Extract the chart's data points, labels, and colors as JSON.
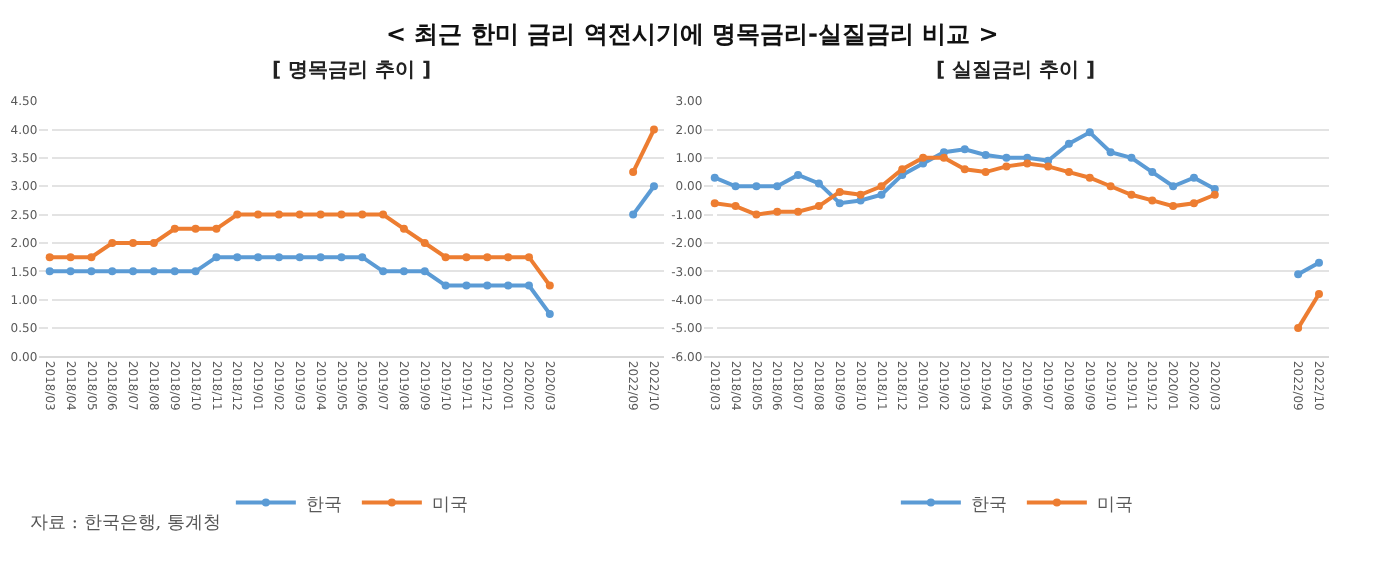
{
  "chart_data": [
    {
      "type": "line",
      "title": "[ 명목금리 추이 ]",
      "annotations": [
        "< 최근 한미 금리 역전시기에 명목금리-실질금리 비교 >",
        "자료 : 한국은행, 통계청"
      ],
      "categories": [
        "2018/03",
        "2018/04",
        "2018/05",
        "2018/06",
        "2018/07",
        "2018/08",
        "2018/09",
        "2018/10",
        "2018/11",
        "2018/12",
        "2019/01",
        "2019/02",
        "2019/03",
        "2019/04",
        "2019/05",
        "2019/06",
        "2019/07",
        "2019/08",
        "2019/09",
        "2019/10",
        "2019/11",
        "2019/12",
        "2020/01",
        "2020/02",
        "2020/03",
        null,
        null,
        null,
        "2022/09",
        "2022/10"
      ],
      "series": [
        {
          "name": "한국",
          "color": "#5b9bd5",
          "values": [
            1.5,
            1.5,
            1.5,
            1.5,
            1.5,
            1.5,
            1.5,
            1.5,
            1.75,
            1.75,
            1.75,
            1.75,
            1.75,
            1.75,
            1.75,
            1.75,
            1.5,
            1.5,
            1.5,
            1.25,
            1.25,
            1.25,
            1.25,
            1.25,
            0.75,
            null,
            null,
            null,
            2.5,
            3.0
          ]
        },
        {
          "name": "미국",
          "color": "#ed7d31",
          "values": [
            1.75,
            1.75,
            1.75,
            2.0,
            2.0,
            2.0,
            2.25,
            2.25,
            2.25,
            2.5,
            2.5,
            2.5,
            2.5,
            2.5,
            2.5,
            2.5,
            2.5,
            2.25,
            2.0,
            1.75,
            1.75,
            1.75,
            1.75,
            1.75,
            1.25,
            null,
            null,
            null,
            3.25,
            4.0
          ]
        }
      ],
      "ylim": [
        0,
        4.5
      ],
      "yticks": [
        {
          "value": 0,
          "label": "0.00"
        },
        {
          "value": 0.5,
          "label": "0.50"
        },
        {
          "value": 1,
          "label": "1.00"
        },
        {
          "value": 1.5,
          "label": "1.50"
        },
        {
          "value": 2,
          "label": "2.00"
        },
        {
          "value": 2.5,
          "label": "2.50"
        },
        {
          "value": 3,
          "label": "3.00"
        },
        {
          "value": 3.5,
          "label": "3.50"
        },
        {
          "value": 4,
          "label": "4.00"
        },
        {
          "value": 4.5,
          "label": "4.50"
        }
      ],
      "grid": "y",
      "legend": "bottom",
      "marker": "circle",
      "line_style": "solid"
    },
    {
      "type": "line",
      "title": "[ 실질금리 추이 ]",
      "categories": [
        "2018/03",
        "2018/04",
        "2018/05",
        "2018/06",
        "2018/07",
        "2018/08",
        "2018/09",
        "2018/10",
        "2018/11",
        "2018/12",
        "2019/01",
        "2019/02",
        "2019/03",
        "2019/04",
        "2019/05",
        "2019/06",
        "2019/07",
        "2019/08",
        "2019/09",
        "2019/10",
        "2019/11",
        "2019/12",
        "2020/01",
        "2020/02",
        "2020/03",
        null,
        null,
        null,
        "2022/09",
        "2022/10"
      ],
      "series": [
        {
          "name": "한국",
          "color": "#5b9bd5",
          "values": [
            0.3,
            0.0,
            0.0,
            0.0,
            0.4,
            0.1,
            -0.6,
            -0.5,
            -0.3,
            0.4,
            0.8,
            1.2,
            1.3,
            1.1,
            1.0,
            1.0,
            0.9,
            1.5,
            1.9,
            1.2,
            1.0,
            0.5,
            0.0,
            0.3,
            -0.1,
            null,
            null,
            null,
            -3.1,
            -2.7
          ]
        },
        {
          "name": "미국",
          "color": "#ed7d31",
          "values": [
            -0.6,
            -0.7,
            -1.0,
            -0.9,
            -0.9,
            -0.7,
            -0.2,
            -0.3,
            0.0,
            0.6,
            1.0,
            1.0,
            0.6,
            0.5,
            0.7,
            0.8,
            0.7,
            0.5,
            0.3,
            0.0,
            -0.3,
            -0.5,
            -0.7,
            -0.6,
            -0.3,
            null,
            null,
            null,
            -5.0,
            -3.8
          ]
        }
      ],
      "ylim": [
        -6,
        3
      ],
      "yticks": [
        {
          "value": -6,
          "label": "-6.00"
        },
        {
          "value": -5,
          "label": "-5.00"
        },
        {
          "value": -4,
          "label": "-4.00"
        },
        {
          "value": -3,
          "label": "-3.00"
        },
        {
          "value": -2,
          "label": "-2.00"
        },
        {
          "value": -1,
          "label": "-1.00"
        },
        {
          "value": 0,
          "label": "0.00"
        },
        {
          "value": 1,
          "label": "1.00"
        },
        {
          "value": 2,
          "label": "2.00"
        },
        {
          "value": 3,
          "label": "3.00"
        }
      ],
      "grid": "y",
      "legend": "bottom",
      "marker": "circle",
      "line_style": "solid"
    }
  ]
}
